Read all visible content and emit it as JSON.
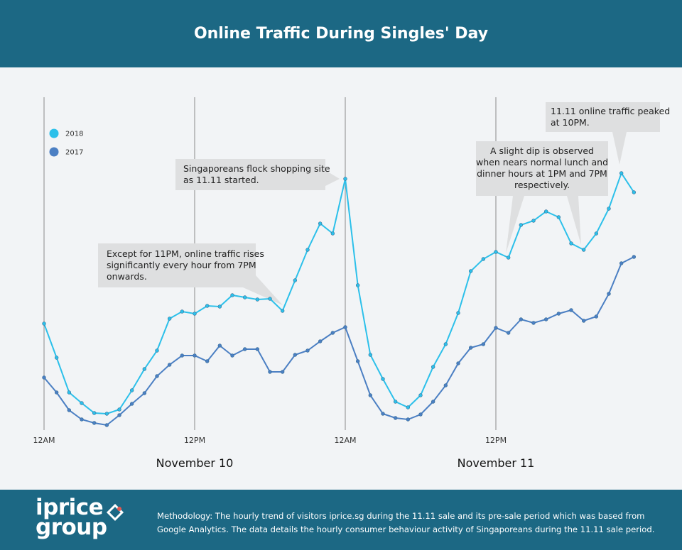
{
  "chart_data": {
    "type": "line",
    "title": "Online Traffic During Singles' Day",
    "categories": [
      "12AM",
      null,
      null,
      null,
      null,
      null,
      null,
      null,
      null,
      null,
      null,
      null,
      "12PM",
      null,
      null,
      null,
      null,
      null,
      null,
      null,
      null,
      null,
      null,
      null,
      "12AM",
      null,
      null,
      null,
      null,
      null,
      null,
      null,
      null,
      null,
      null,
      null,
      "12PM",
      null,
      null,
      null,
      null,
      null,
      null,
      null,
      null,
      null,
      null,
      null
    ],
    "x_groups": [
      "November 10",
      "November 11"
    ],
    "series": [
      {
        "name": "2018",
        "color": "#2cc0ea",
        "values": [
          164,
          116,
          67,
          52,
          38,
          37,
          43,
          70,
          100,
          126,
          171,
          181,
          178,
          189,
          188,
          204,
          201,
          198,
          199,
          182,
          225,
          268,
          305,
          291,
          368,
          218,
          120,
          86,
          54,
          46,
          63,
          103,
          135,
          179,
          238,
          255,
          265,
          257,
          303,
          309,
          322,
          314,
          277,
          268,
          291,
          326,
          376,
          349
        ]
      },
      {
        "name": "2017",
        "color": "#4b7fc3",
        "values": [
          88,
          67,
          42,
          29,
          24,
          21,
          35,
          51,
          66,
          90,
          106,
          119,
          119,
          111,
          133,
          119,
          128,
          128,
          96,
          96,
          120,
          126,
          139,
          151,
          159,
          111,
          63,
          37,
          31,
          29,
          36,
          54,
          77,
          108,
          130,
          135,
          158,
          151,
          170,
          165,
          170,
          178,
          183,
          168,
          174,
          206,
          249,
          258
        ]
      }
    ],
    "ylim": [
      0,
      400
    ],
    "grid": true,
    "legend": "top-left",
    "annotations": [
      {
        "lines": [
          "Except for 11PM, online traffic rises",
          "significantly every hour from 7PM",
          "onwards."
        ]
      },
      {
        "lines": [
          "Singaporeans flock  shopping site",
          "as 11.11 started."
        ]
      },
      {
        "lines": [
          "A slight dip is observed",
          "when nears normal lunch and",
          "dinner hours at 1PM and 7PM",
          "respectively."
        ]
      },
      {
        "lines": [
          "11.11 online traffic peaked",
          "at 10PM."
        ]
      }
    ]
  },
  "footer": {
    "logo": [
      "iprice",
      "group"
    ],
    "methodology": [
      "Methodology: The hourly trend of visitors iprice.sg during the 11.11 sale and its pre-sale period which was based from",
      "Google Analytics. The data details the hourly consumer behaviour activity of Singaporeans during the 11.11 sale period."
    ]
  }
}
